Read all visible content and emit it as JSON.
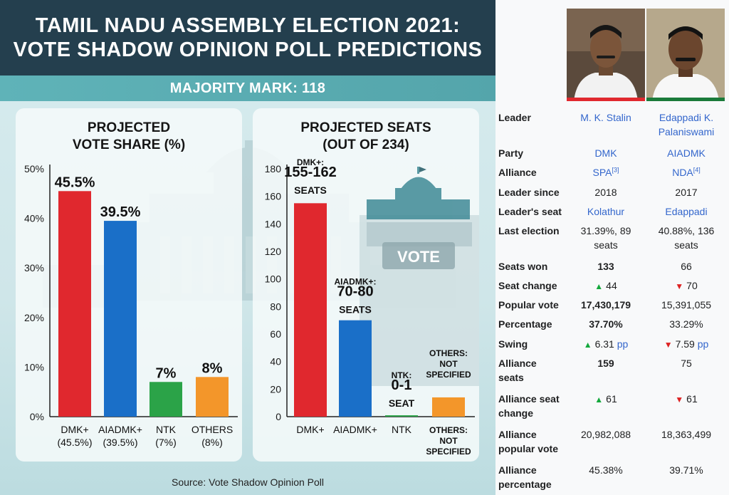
{
  "header": {
    "title_line1": "TAMIL NADU ASSEMBLY ELECTION 2021:",
    "title_line2": "VOTE SHADOW OPINION POLL PREDICTIONS",
    "majority": "MAJORITY MARK: 118",
    "ballot_box_text": "VOTE"
  },
  "source": "Source: Vote Shadow Opinion Poll",
  "colors": {
    "dmk": "#e0282e",
    "aiadmk": "#1a6fc8",
    "ntk": "#2ba348",
    "others": "#f3962a",
    "banner": "#243f4e",
    "strip": "#5aaeb3",
    "up": "#14a83c",
    "down": "#dd2222",
    "link": "#3366cc"
  },
  "chart_data": [
    {
      "type": "bar",
      "title_line1": "PROJECTED",
      "title_line2": "VOTE SHARE (%)",
      "ylim": [
        0,
        50
      ],
      "ytick_labels": [
        "0%",
        "10%",
        "20%",
        "30%",
        "40%",
        "50%"
      ],
      "categories": [
        "DMK+",
        "AIADMK+",
        "NTK",
        "OTHERS"
      ],
      "category_sublabels": [
        "(45.5%)",
        "(39.5%)",
        "(7%)",
        "(8%)"
      ],
      "values": [
        45.5,
        39.5,
        7,
        8
      ],
      "value_labels": [
        "45.5%",
        "39.5%",
        "7%",
        "8%"
      ]
    },
    {
      "type": "bar",
      "title_line1": "PROJECTED SEATS",
      "title_line2": "(OUT OF 234)",
      "ylim": [
        0,
        180
      ],
      "ytick_labels": [
        "0",
        "20",
        "40",
        "60",
        "80",
        "100",
        "120",
        "140",
        "160",
        "180"
      ],
      "categories": [
        "DMK+",
        "AIADMK+",
        "NTK",
        "OTHERS:\nNOT\nSPECIFIED"
      ],
      "values": [
        155,
        70,
        1,
        14
      ],
      "value_labels": [
        [
          "DMK+:",
          "155-162",
          "SEATS"
        ],
        [
          "AIADMK+:",
          "70-80",
          "SEATS"
        ],
        [
          "NTK:",
          "0-1",
          "SEAT"
        ],
        [
          "OTHERS:",
          "NOT",
          "SPECIFIED"
        ]
      ]
    }
  ],
  "infobox": {
    "candidates": [
      {
        "name": "M. K. Stalin",
        "bar_color": "#e0282e"
      },
      {
        "name_line1": "Edappadi K.",
        "name_line2": "Palaniswami",
        "bar_color": "#1a7a3a"
      }
    ],
    "rows": {
      "leader": {
        "label": "Leader",
        "c1": "M. K. Stalin",
        "c2a": "Edappadi K.",
        "c2b": "Palaniswami"
      },
      "party": {
        "label": "Party",
        "c1": "DMK",
        "c2": "AIADMK"
      },
      "alliance": {
        "label": "Alliance",
        "c1": "SPA",
        "c1_ref": "[3]",
        "c2": "NDA",
        "c2_ref": "[4]"
      },
      "leader_since": {
        "label": "Leader since",
        "c1": "2018",
        "c2": "2017"
      },
      "leaders_seat": {
        "label": "Leader's seat",
        "c1": "Kolathur",
        "c2": "Edappadi"
      },
      "last_election": {
        "label": "Last election",
        "c1a": "31.39%, 89",
        "c1b": "seats",
        "c2a": "40.88%, 136",
        "c2b": "seats"
      },
      "seats_won": {
        "label": "Seats won",
        "c1": "133",
        "c2": "66"
      },
      "seat_change": {
        "label": "Seat change",
        "c1": "44",
        "c2": "70"
      },
      "popular_vote": {
        "label": "Popular vote",
        "c1": "17,430,179",
        "c2": "15,391,055"
      },
      "percentage": {
        "label": "Percentage",
        "c1": "37.70%",
        "c2": "33.29%"
      },
      "swing": {
        "label": "Swing",
        "c1": "6.31",
        "c2": "7.59",
        "unit": "pp"
      },
      "alliance_seats": {
        "label_a": "Alliance",
        "label_b": "seats",
        "c1": "159",
        "c2": "75"
      },
      "alliance_seat_change": {
        "label_a": "Alliance seat",
        "label_b": "change",
        "c1": "61",
        "c2": "61"
      },
      "alliance_popular_vote": {
        "label_a": "Alliance",
        "label_b": "popular vote",
        "c1": "20,982,088",
        "c2": "18,363,499"
      },
      "alliance_percentage": {
        "label_a": "Alliance",
        "label_b": "percentage",
        "c1": "45.38%",
        "c2": "39.71%"
      }
    }
  }
}
